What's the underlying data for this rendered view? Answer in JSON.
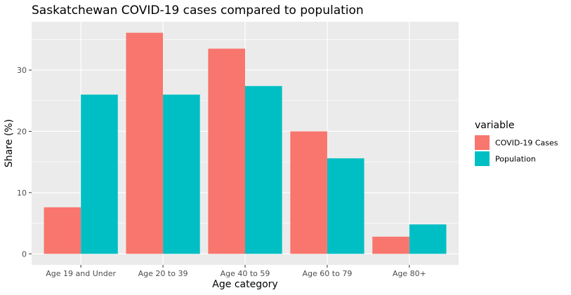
{
  "chart_data": {
    "type": "bar",
    "title": "Saskatchewan COVID-19 cases compared to population",
    "xlabel": "Age category",
    "ylabel": "Share (%)",
    "categories": [
      "Age 19 and Under",
      "Age 20 to 39",
      "Age 40 to 59",
      "Age 60 to 79",
      "Age 80+"
    ],
    "series": [
      {
        "name": "COVID-19 Cases",
        "color": "#F8766D",
        "values": [
          7.6,
          36.1,
          33.5,
          20.0,
          2.8
        ]
      },
      {
        "name": "Population",
        "color": "#00BFC4",
        "values": [
          26.0,
          26.0,
          27.4,
          15.6,
          4.8
        ]
      }
    ],
    "ylim": [
      -1.8,
      37.9
    ],
    "yticks": [
      0,
      10,
      20,
      30
    ],
    "grid": true,
    "legend": {
      "title": "variable",
      "position": "right"
    },
    "panel_background": "#EBEBEB",
    "grid_color": "#FFFFFF"
  }
}
